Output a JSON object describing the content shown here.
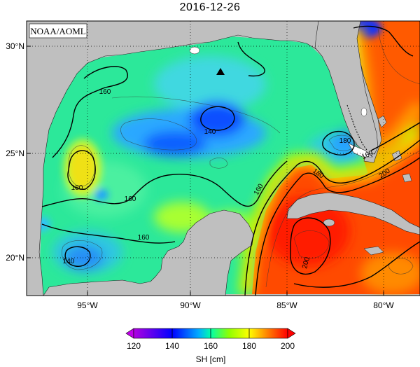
{
  "title": "2016-12-26",
  "credit": "NOAA/AOML",
  "lat_labels": [
    "30°N",
    "25°N",
    "20°N"
  ],
  "lon_labels": [
    "95°W",
    "90°W",
    "85°W",
    "80°W"
  ],
  "contour_labels": [
    "160",
    "140",
    "180",
    "160",
    "160",
    "140",
    "160",
    "180",
    "160",
    "200",
    "180",
    "200"
  ],
  "colorbar": {
    "ticks": [
      "120",
      "140",
      "160",
      "180",
      "200"
    ],
    "label": "SH [cm]",
    "range": [
      120,
      200
    ],
    "colors": [
      "#cc00ff",
      "#0000ff",
      "#00b4ff",
      "#00ff96",
      "#96ff00",
      "#ffff00",
      "#ff9600",
      "#ff0000"
    ]
  },
  "colors": {
    "land": "#bfbfbf",
    "frame": "#000000",
    "grid": "#000000"
  },
  "marker": "triangle-marker"
}
